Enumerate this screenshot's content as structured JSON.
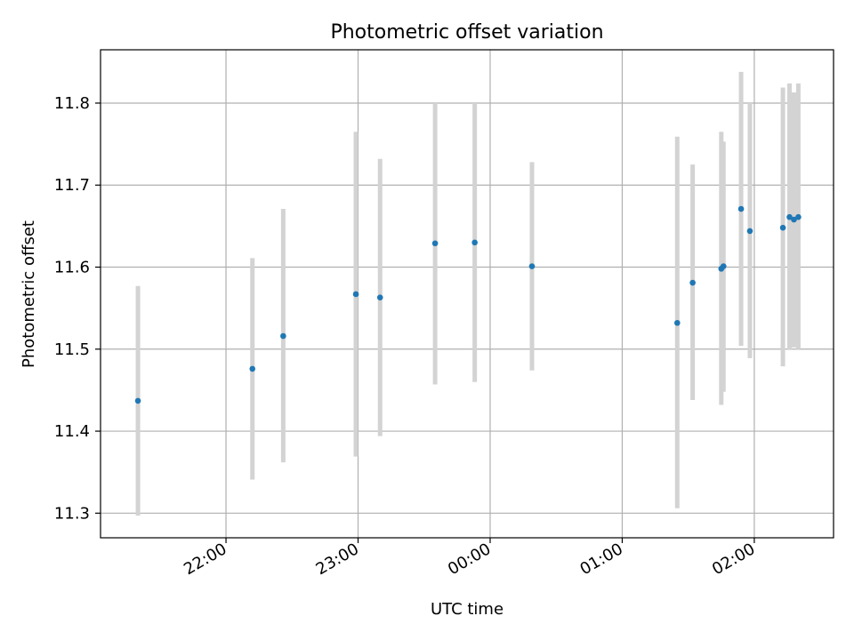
{
  "chart_data": {
    "type": "scatter",
    "title": "Photometric offset variation",
    "xlabel": "UTC time",
    "ylabel": "Photometric offset",
    "x_axis": {
      "kind": "time",
      "range": [
        "21:03",
        "02:36"
      ],
      "ticks": [
        "22:00",
        "23:00",
        "00:00",
        "01:00",
        "02:00"
      ]
    },
    "y_axis": {
      "range": [
        11.27,
        11.865
      ],
      "ticks": [
        "11.3",
        "11.4",
        "11.5",
        "11.6",
        "11.7",
        "11.8"
      ]
    },
    "grid": true,
    "colors": {
      "marker": "#1f77b4",
      "errorbar": "#d3d3d3",
      "grid": "#b0b0b0"
    },
    "series": [
      {
        "points": [
          {
            "x": "21:20",
            "y": 11.437,
            "y_low": 11.297,
            "y_high": 11.577
          },
          {
            "x": "22:12",
            "y": 11.476,
            "y_low": 11.341,
            "y_high": 11.611
          },
          {
            "x": "22:26",
            "y": 11.516,
            "y_low": 11.362,
            "y_high": 11.671
          },
          {
            "x": "22:59",
            "y": 11.567,
            "y_low": 11.369,
            "y_high": 11.765
          },
          {
            "x": "23:10",
            "y": 11.563,
            "y_low": 11.394,
            "y_high": 11.732
          },
          {
            "x": "23:35",
            "y": 11.629,
            "y_low": 11.457,
            "y_high": 11.8
          },
          {
            "x": "23:53",
            "y": 11.63,
            "y_low": 11.46,
            "y_high": 11.8
          },
          {
            "x": "00:19",
            "y": 11.601,
            "y_low": 11.474,
            "y_high": 11.728
          },
          {
            "x": "01:25",
            "y": 11.532,
            "y_low": 11.306,
            "y_high": 11.759
          },
          {
            "x": "01:32",
            "y": 11.581,
            "y_low": 11.438,
            "y_high": 11.725
          },
          {
            "x": "01:45",
            "y": 11.598,
            "y_low": 11.432,
            "y_high": 11.765
          },
          {
            "x": "01:46",
            "y": 11.601,
            "y_low": 11.448,
            "y_high": 11.753
          },
          {
            "x": "01:54",
            "y": 11.671,
            "y_low": 11.504,
            "y_high": 11.838
          },
          {
            "x": "01:58",
            "y": 11.644,
            "y_low": 11.489,
            "y_high": 11.8
          },
          {
            "x": "02:13",
            "y": 11.648,
            "y_low": 11.479,
            "y_high": 11.819
          },
          {
            "x": "02:16",
            "y": 11.661,
            "y_low": 11.499,
            "y_high": 11.824
          },
          {
            "x": "02:18",
            "y": 11.658,
            "y_low": 11.502,
            "y_high": 11.813
          },
          {
            "x": "02:20",
            "y": 11.661,
            "y_low": 11.5,
            "y_high": 11.824
          }
        ]
      }
    ]
  }
}
